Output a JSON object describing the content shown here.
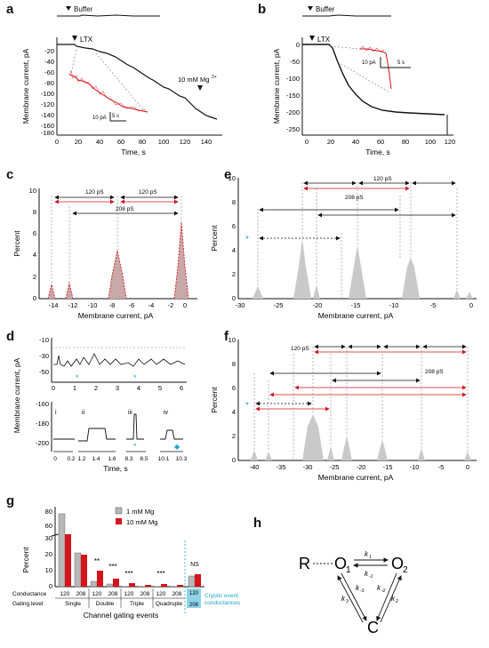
{
  "figure": {
    "panels": [
      "a",
      "b",
      "c",
      "d",
      "e",
      "f",
      "g",
      "h"
    ]
  },
  "panel_a": {
    "buffer_label": "Buffer",
    "ltx_label": "LTX",
    "mg_label": "10 mM Mg",
    "mg_superscript": "2+",
    "ylabel": "Membrane current, pA",
    "xlabel": "Time, s",
    "yticks": [
      "-20",
      "-40",
      "-60",
      "-80",
      "-100",
      "-120",
      "-140",
      "-160",
      "-180"
    ],
    "xticks": [
      "0",
      "20",
      "40",
      "60",
      "80",
      "100",
      "120",
      "140"
    ],
    "scale_pa": "10 pA",
    "scale_s": "5 s"
  },
  "panel_b": {
    "buffer_label": "Buffer",
    "ltx_label": "LTX",
    "ylabel": "Membrane current, pA",
    "xlabel": "Time, s",
    "yticks": [
      "0",
      "-50",
      "-100",
      "-150",
      "-200",
      "-250"
    ],
    "xticks": [
      "0",
      "20",
      "40",
      "60",
      "80",
      "100",
      "120"
    ],
    "scale_pa": "10 pA",
    "scale_s": "5 s"
  },
  "panel_c": {
    "ylabel": "Percent",
    "xlabel": "Membrane current, pA",
    "yticks": [
      "0",
      "2",
      "4",
      "6",
      "8",
      "10"
    ],
    "xticks": [
      "-14",
      "-12",
      "-10",
      "-8",
      "-6",
      "-4",
      "-2",
      "0"
    ],
    "label_120a": "120 pS",
    "label_120b": "120 pS",
    "label_208": "208 pS"
  },
  "panel_d": {
    "ylabel": "Membrane current, pA",
    "xlabel": "Time, s",
    "top_yticks": [
      "-10",
      "-30",
      "-50"
    ],
    "top_xticks": [
      "0",
      "1",
      "2",
      "3",
      "4",
      "5",
      "6"
    ],
    "bottom_yticks": [
      "-160",
      "-180",
      "-200"
    ],
    "sub_labels": [
      "i",
      "ii",
      "iii",
      "iv"
    ],
    "sub_xticks": [
      "0",
      "0.2",
      "1.2",
      "1.4",
      "1.6",
      "8.3",
      "8.5",
      "10.1",
      "10.3"
    ]
  },
  "panel_e": {
    "ylabel": "Percent",
    "xlabel": "Membrane current, pA",
    "yticks": [
      "0",
      "2",
      "4",
      "6",
      "8",
      "10"
    ],
    "xticks": [
      "-30",
      "-25",
      "-20",
      "-15",
      "-10",
      "-5",
      "0"
    ],
    "label_120": "120 pS",
    "label_208": "208 pS"
  },
  "panel_f": {
    "ylabel": "Percent",
    "xlabel": "Membrane current, pA",
    "yticks": [
      "0",
      "2",
      "4",
      "6",
      "8",
      "10"
    ],
    "xticks": [
      "-40",
      "-35",
      "-30",
      "-25",
      "-20",
      "-15",
      "-10",
      "-5",
      "0"
    ],
    "label_120": "120 pS",
    "label_208": "208 pS"
  },
  "panel_g": {
    "ylabel": "Percent",
    "xlabel": "Channel gating events",
    "legend": [
      "1 mM Mg",
      "10 mM Mg"
    ],
    "yticks_top": [
      "60",
      "80"
    ],
    "yticks_bottom": [
      "0",
      "10",
      "20",
      "30"
    ],
    "conductance_label": "Conductance",
    "gating_label": "Gating level",
    "conductances": [
      "120",
      "208",
      "120",
      "208",
      "120",
      "208",
      "120",
      "208"
    ],
    "gating_levels": [
      "Single",
      "Double",
      "Triple",
      "Quadruple"
    ],
    "significance": [
      "**",
      "***",
      "***",
      "***",
      "NS"
    ],
    "cryptic_box": [
      "120",
      "208"
    ],
    "cryptic_label_1": "Cryptic event",
    "cryptic_label_2": "conductances",
    "colors": {
      "mg1": "#b8b8b8",
      "mg10": "#d4141c",
      "cyan": "#1aa6c8"
    }
  },
  "panel_h": {
    "R": "R",
    "O1": "O",
    "O1_sub": "1",
    "O2": "O",
    "O2_sub": "2",
    "C": "C",
    "k1": "k",
    "k1_sub": "1",
    "km1": "k",
    "km1_sub": "-1",
    "km3": "k",
    "km3_sub": "-3",
    "k3": "k",
    "k3_sub": "3",
    "km2": "k",
    "km2_sub": "-2",
    "k2": "k",
    "k2_sub": "2"
  }
}
